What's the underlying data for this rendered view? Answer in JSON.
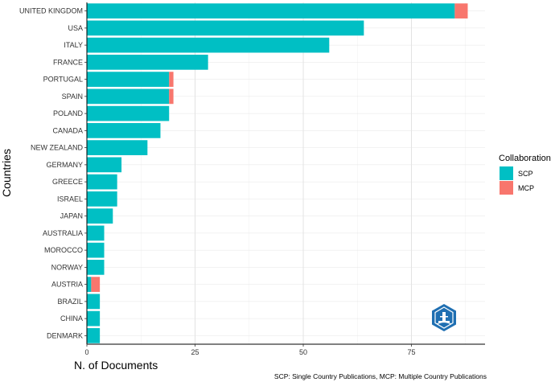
{
  "chart_data": {
    "type": "bar",
    "orientation": "horizontal",
    "stacked": true,
    "xlabel": "N. of Documents",
    "ylabel": "Countries",
    "xlim": [
      0,
      92
    ],
    "xticks": [
      0,
      25,
      50,
      75
    ],
    "grid": true,
    "legend_title": "Collaboration",
    "legend_position": "right",
    "caption": "SCP: Single Country Publications, MCP: Multiple Country Publications",
    "categories": [
      "UNITED KINGDOM",
      "USA",
      "ITALY",
      "FRANCE",
      "PORTUGAL",
      "SPAIN",
      "POLAND",
      "CANADA",
      "NEW ZEALAND",
      "GERMANY",
      "GREECE",
      "ISRAEL",
      "JAPAN",
      "AUSTRALIA",
      "MOROCCO",
      "NORWAY",
      "AUSTRIA",
      "BRAZIL",
      "CHINA",
      "DENMARK"
    ],
    "series": [
      {
        "name": "SCP",
        "color": "#00BFC4",
        "values": [
          85,
          64,
          56,
          28,
          19,
          19,
          19,
          17,
          14,
          8,
          7,
          7,
          6,
          4,
          4,
          4,
          1,
          3,
          3,
          3
        ]
      },
      {
        "name": "MCP",
        "color": "#F8766D",
        "values": [
          3,
          0,
          0,
          0,
          1,
          1,
          0,
          0,
          0,
          0,
          0,
          0,
          0,
          0,
          0,
          0,
          2,
          0,
          0,
          0
        ]
      }
    ]
  },
  "logo": {
    "name": "bibliometrix-logo-icon",
    "colors": [
      "#1f6fb2",
      "#ffffff"
    ]
  }
}
